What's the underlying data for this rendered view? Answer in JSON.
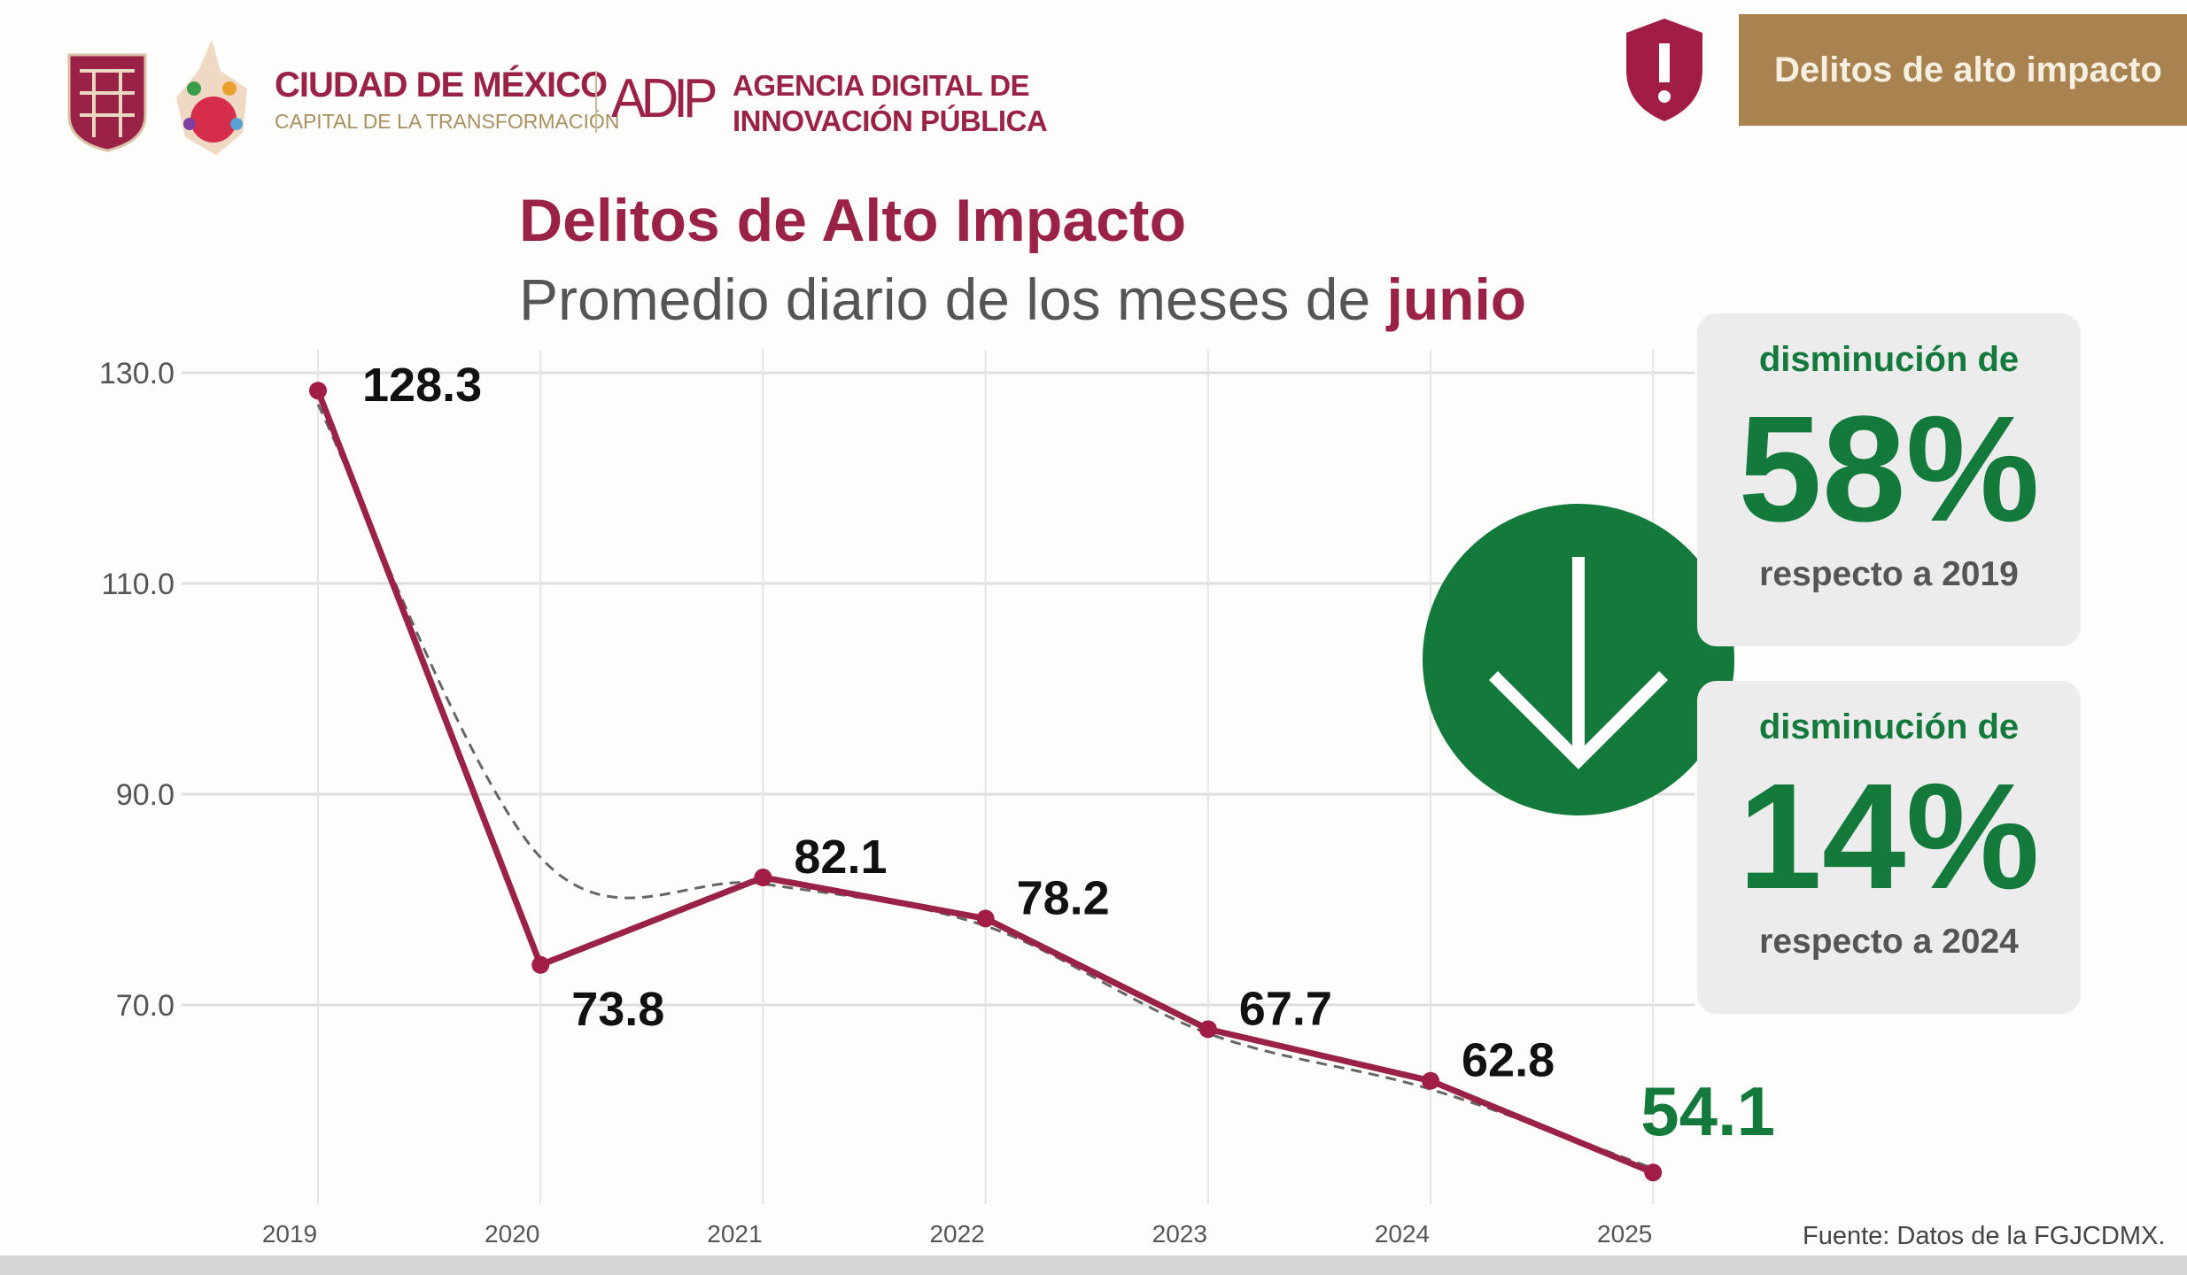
{
  "header": {
    "brand_title": "CIUDAD DE MÉXICO",
    "brand_subtitle": "CAPITAL DE LA TRANSFORMACIÓN",
    "agency_logo_text": "ADIP",
    "agency_line1": "AGENCIA DIGITAL DE",
    "agency_line2": "INNOVACIÓN PÚBLICA",
    "section_badge": "Delitos de alto impacto"
  },
  "colors": {
    "primary": "#9b2247",
    "gold": "#a8834f",
    "green": "#137a3c",
    "grid": "#dddddd"
  },
  "title": "Delitos de Alto Impacto",
  "subtitle_prefix": "Promedio diario de los meses de ",
  "subtitle_highlight": "junio",
  "cards": [
    {
      "label": "disminución de",
      "value": "58%",
      "reference": "respecto a 2019"
    },
    {
      "label": "disminución de",
      "value": "14%",
      "reference": "respecto a 2024"
    }
  ],
  "source": "Fuente: Datos de la FGJCDMX.",
  "chart_data": {
    "type": "line",
    "title": "Delitos de Alto Impacto",
    "subtitle": "Promedio diario de los meses de junio",
    "xlabel": "",
    "ylabel": "",
    "x": [
      "2019",
      "2020",
      "2021",
      "2022",
      "2023",
      "2024",
      "2025"
    ],
    "series": [
      {
        "name": "Promedio diario",
        "values": [
          128.3,
          73.8,
          82.1,
          78.2,
          67.7,
          62.8,
          54.1
        ]
      },
      {
        "name": "Tendencia (línea punteada)",
        "values": [
          127,
          84,
          81.5,
          77.5,
          67.3,
          62,
          54.5
        ]
      }
    ],
    "data_labels": [
      "128.3",
      "73.8",
      "82.1",
      "78.2",
      "67.7",
      "62.8",
      "54.1"
    ],
    "yticks": [
      "130.0",
      "110.0",
      "90.0",
      "70.0"
    ],
    "ytick_values": [
      130,
      110,
      90,
      70
    ],
    "ylim": [
      50,
      132
    ],
    "grid": true,
    "legend": "none"
  }
}
